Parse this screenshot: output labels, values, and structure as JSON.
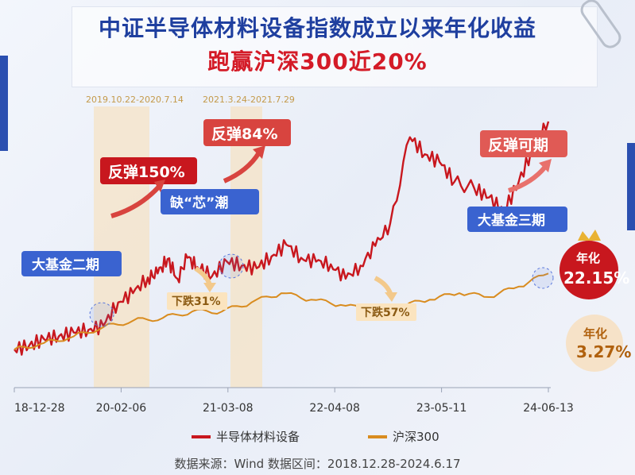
{
  "header": {
    "title_line1": "中证半导体材料设备指数成立以来年化收益",
    "title_line2": "跑赢沪深300近20%"
  },
  "periods": [
    "2019.10.22-2020.7.14",
    "2021.3.24-2021.7.29"
  ],
  "callouts": {
    "big_fund_2": "大基金二期",
    "chip_wave": "缺“芯”潮",
    "big_fund_3": "大基金三期",
    "rebound_150": "反弹150%",
    "rebound_84": "反弹84%",
    "rebound_possible": "反弹可期",
    "drop_31": "下跌31%",
    "drop_57": "下跌57%"
  },
  "badges": {
    "semi_label": "年化",
    "semi_value": "22.15%",
    "hs300_label": "年化",
    "hs300_value": "3.27%"
  },
  "footer": "数据来源：Wind 数据区间：2018.12.28-2024.6.17",
  "colors": {
    "semi": "#c8171e",
    "hs300": "#d98c1f",
    "period_band": "#f5e3c6"
  },
  "chart_data": {
    "type": "line",
    "x_tick_labels": [
      "18-12-28",
      "20-02-06",
      "21-03-08",
      "22-04-08",
      "23-05-11",
      "24-06-13"
    ],
    "series": [
      {
        "name": "半导体材料设备",
        "points": [
          [
            0,
            0.0
          ],
          [
            3,
            0.3
          ],
          [
            6,
            0.8
          ],
          [
            9,
            1.0
          ],
          [
            12,
            1.3
          ],
          [
            15,
            1.5
          ],
          [
            18,
            1.8
          ],
          [
            21,
            3.6
          ],
          [
            24,
            4.3
          ],
          [
            27,
            5.5
          ],
          [
            29,
            5.8
          ],
          [
            31,
            6.9
          ],
          [
            33,
            5.4
          ],
          [
            35,
            7.0
          ],
          [
            37,
            6.3
          ],
          [
            40,
            5.6
          ],
          [
            43,
            6.7
          ],
          [
            46,
            6.4
          ],
          [
            49,
            6.2
          ],
          [
            52,
            7.1
          ],
          [
            55,
            8.0
          ],
          [
            58,
            7.0
          ],
          [
            61,
            6.7
          ],
          [
            64,
            6.5
          ],
          [
            67,
            5.4
          ],
          [
            70,
            6.4
          ],
          [
            73,
            7.9
          ],
          [
            76,
            9.6
          ],
          [
            80,
            16.2
          ],
          [
            83,
            14.9
          ],
          [
            86,
            14.3
          ],
          [
            89,
            12.8
          ],
          [
            93,
            12.3
          ],
          [
            96,
            11.6
          ],
          [
            99,
            10.5
          ],
          [
            102,
            12.8
          ],
          [
            105,
            15.4
          ],
          [
            108,
            17.4
          ]
        ]
      },
      {
        "name": "沪深300",
        "points": [
          [
            0,
            0.0
          ],
          [
            6,
            0.5
          ],
          [
            12,
            1.0
          ],
          [
            18,
            1.7
          ],
          [
            24,
            2.2
          ],
          [
            30,
            2.4
          ],
          [
            36,
            2.9
          ],
          [
            42,
            2.9
          ],
          [
            48,
            3.6
          ],
          [
            54,
            4.3
          ],
          [
            60,
            3.8
          ],
          [
            66,
            3.4
          ],
          [
            72,
            3.0
          ],
          [
            78,
            3.3
          ],
          [
            84,
            3.8
          ],
          [
            90,
            4.3
          ],
          [
            96,
            4.0
          ],
          [
            102,
            4.8
          ],
          [
            108,
            5.8
          ]
        ]
      }
    ]
  },
  "legend": [
    {
      "label": "半导体材料设备"
    },
    {
      "label": "沪深300"
    }
  ]
}
